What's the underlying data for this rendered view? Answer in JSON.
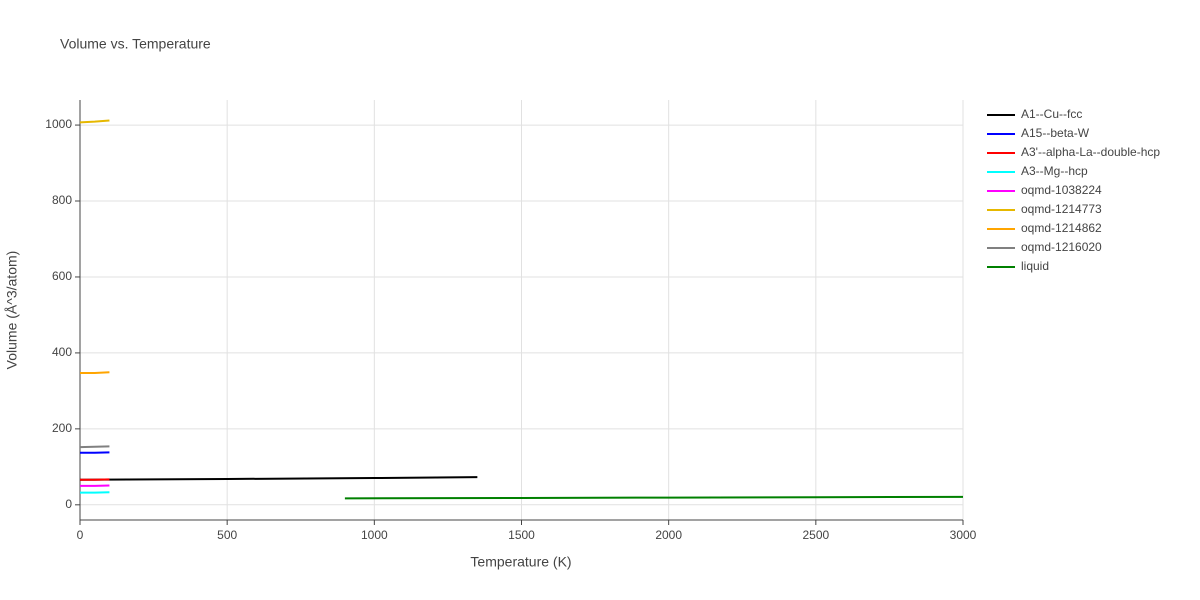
{
  "chart_data": {
    "type": "line",
    "title": "Volume vs. Temperature",
    "x_label": "Temperature (K)",
    "y_label": "Volume (Å^3/atom)",
    "xlim": [
      0,
      3000
    ],
    "ylim": [
      -40,
      1066
    ],
    "xticks": [
      0,
      500,
      1000,
      1500,
      2000,
      2500,
      3000
    ],
    "yticks": [
      0,
      200,
      400,
      600,
      800,
      1000
    ],
    "grid": true,
    "legend": "right",
    "series": [
      {
        "name": "A1--Cu--fcc",
        "color": "#000000",
        "x": [
          0,
          500,
          1000,
          1350
        ],
        "values": [
          66,
          68,
          70.5,
          73
        ]
      },
      {
        "name": "A15--beta-W",
        "color": "#0000ff",
        "x": [
          0,
          50,
          100
        ],
        "values": [
          137,
          137,
          138
        ]
      },
      {
        "name": "A3'--alpha-La--double-hcp",
        "color": "#ff0000",
        "x": [
          0,
          50,
          100
        ],
        "values": [
          66,
          66,
          67
        ]
      },
      {
        "name": "A3--Mg--hcp",
        "color": "#00ffff",
        "x": [
          0,
          50,
          100
        ],
        "values": [
          32,
          32,
          33
        ]
      },
      {
        "name": "oqmd-1038224",
        "color": "#ff00ff",
        "x": [
          0,
          50,
          100
        ],
        "values": [
          50,
          50,
          51
        ]
      },
      {
        "name": "oqmd-1214773",
        "color": "#e6b800",
        "x": [
          0,
          50,
          100
        ],
        "values": [
          1007,
          1009,
          1012
        ]
      },
      {
        "name": "oqmd-1214862",
        "color": "#ffa500",
        "x": [
          0,
          50,
          100
        ],
        "values": [
          347,
          347,
          349
        ]
      },
      {
        "name": "oqmd-1216020",
        "color": "#808080",
        "x": [
          0,
          50,
          100
        ],
        "values": [
          152,
          153,
          154
        ]
      },
      {
        "name": "liquid",
        "color": "#008000",
        "x": [
          900,
          1500,
          2000,
          2500,
          3000
        ],
        "values": [
          17,
          18,
          19,
          20,
          21
        ]
      }
    ]
  }
}
